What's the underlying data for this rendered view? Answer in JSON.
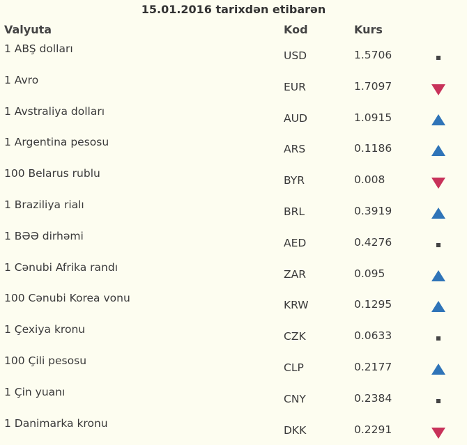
{
  "title": "15.01.2016 tarixdən etibarən",
  "columns": {
    "name": "Valyuta",
    "code": "Kod",
    "rate": "Kurs"
  },
  "colors": {
    "up": "#2f74b8",
    "down": "#c8325a",
    "same": "#444444"
  },
  "rows": [
    {
      "name": "1 ABŞ dolları",
      "code": "USD",
      "rate": "1.5706",
      "trend": "same"
    },
    {
      "name": "1 Avro",
      "code": "EUR",
      "rate": "1.7097",
      "trend": "down"
    },
    {
      "name": "1 Avstraliya dolları",
      "code": "AUD",
      "rate": "1.0915",
      "trend": "up"
    },
    {
      "name": "1 Argentina pesosu",
      "code": "ARS",
      "rate": "0.1186",
      "trend": "up"
    },
    {
      "name": "100 Belarus rublu",
      "code": "BYR",
      "rate": "0.008",
      "trend": "down"
    },
    {
      "name": "1 Braziliya rialı",
      "code": "BRL",
      "rate": "0.3919",
      "trend": "up"
    },
    {
      "name": "1 BƏƏ dirhəmi",
      "code": "AED",
      "rate": "0.4276",
      "trend": "same"
    },
    {
      "name": "1 Cənubi Afrika randı",
      "code": "ZAR",
      "rate": "0.095",
      "trend": "up"
    },
    {
      "name": "100 Cənubi Korea vonu",
      "code": "KRW",
      "rate": "0.1295",
      "trend": "up"
    },
    {
      "name": "1 Çexiya kronu",
      "code": "CZK",
      "rate": "0.0633",
      "trend": "same"
    },
    {
      "name": "100 Çili pesosu",
      "code": "CLP",
      "rate": "0.2177",
      "trend": "up"
    },
    {
      "name": "1 Çin yuanı",
      "code": "CNY",
      "rate": "0.2384",
      "trend": "same"
    },
    {
      "name": "1 Danimarka kronu",
      "code": "DKK",
      "rate": "0.2291",
      "trend": "down"
    }
  ]
}
